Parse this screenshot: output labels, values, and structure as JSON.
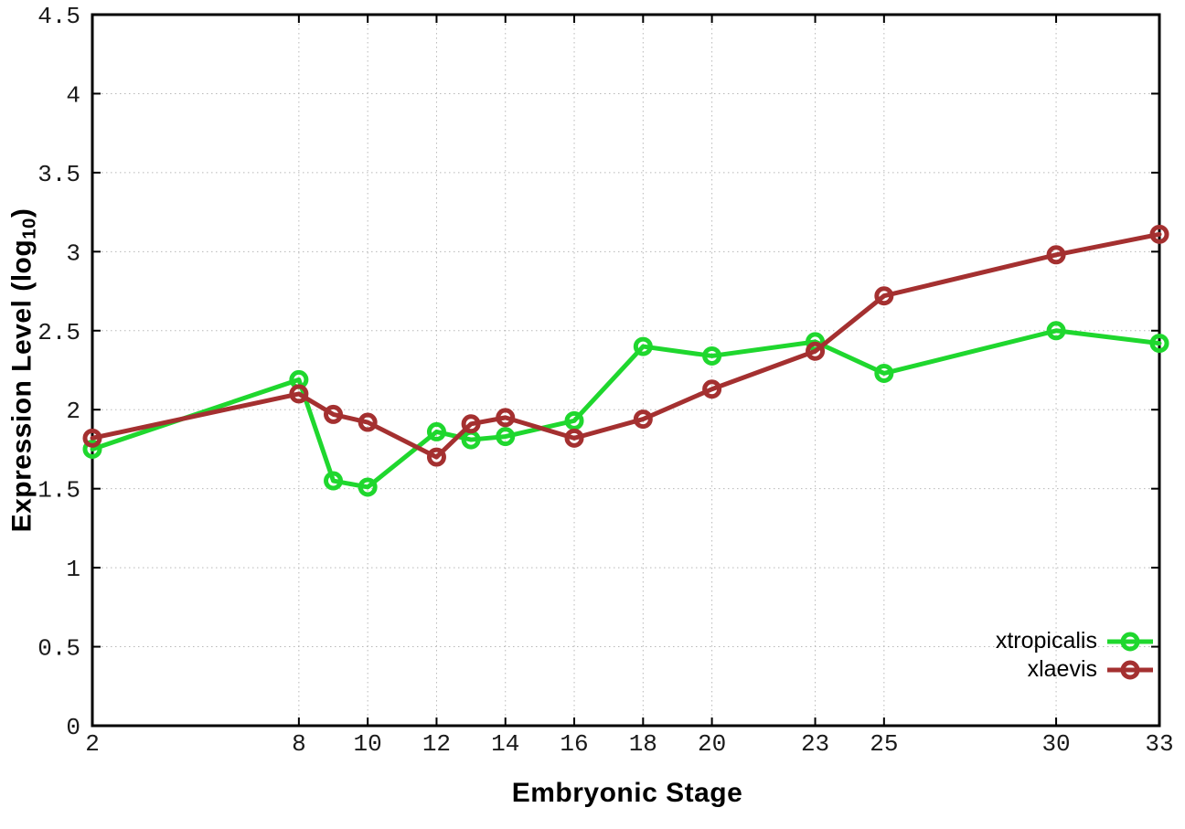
{
  "chart_data": {
    "type": "line",
    "title": "",
    "xlabel": "Embryonic Stage",
    "ylabel_prefix": "Expression Level (log",
    "ylabel_subscript": "10",
    "ylabel_suffix": ")",
    "x": [
      2,
      8,
      9,
      10,
      12,
      13,
      14,
      16,
      18,
      20,
      23,
      25,
      30,
      33
    ],
    "x_ticks": [
      2,
      8,
      10,
      12,
      14,
      16,
      18,
      20,
      23,
      25,
      30,
      33
    ],
    "x_tick_labels": [
      "2",
      "8",
      "10",
      "12",
      "14",
      "16",
      "18",
      "20",
      "23",
      "25",
      "30",
      "33"
    ],
    "y_ticks": [
      0,
      0.5,
      1,
      1.5,
      2,
      2.5,
      3,
      3.5,
      4,
      4.5
    ],
    "y_tick_labels": [
      "0",
      "0.5",
      "1",
      "1.5",
      "2",
      "2.5",
      "3",
      "3.5",
      "4",
      "4.5"
    ],
    "xlim": [
      2,
      33
    ],
    "ylim": [
      0,
      4.5
    ],
    "grid": true,
    "legend_position": "inside-bottom-right",
    "series": [
      {
        "name": "xtropicalis",
        "color": "#1fd72e",
        "values": [
          1.75,
          2.19,
          1.55,
          1.51,
          1.86,
          1.81,
          1.83,
          1.93,
          2.4,
          2.34,
          2.43,
          2.23,
          2.5,
          2.42
        ]
      },
      {
        "name": "xlaevis",
        "color": "#a43030",
        "values": [
          1.82,
          2.1,
          1.97,
          1.92,
          1.7,
          1.91,
          1.95,
          1.82,
          1.94,
          2.13,
          2.37,
          2.72,
          2.98,
          3.11
        ]
      }
    ]
  },
  "colors": {
    "background": "#ffffff",
    "axis": "#000000",
    "grid": "#b8b8b8",
    "tick_label": "#1a1a1a"
  }
}
